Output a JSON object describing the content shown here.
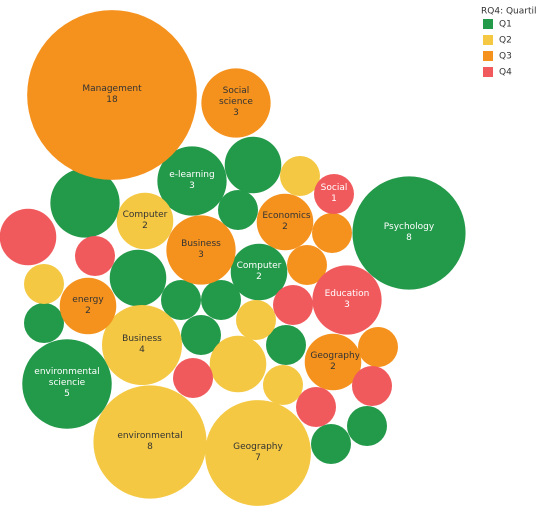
{
  "chart_data": {
    "type": "bubble",
    "legend_title": "RQ4: Quartil",
    "legend_position": "top-right",
    "series": [
      {
        "name": "Q1",
        "color": "#23994a",
        "labels": [
          "e-learning",
          "Computer",
          "Psychology",
          "environmental sciencie",
          null,
          null,
          null,
          null,
          null,
          null,
          null,
          null,
          null,
          null,
          null
        ],
        "values": [
          3,
          2,
          8,
          5,
          3,
          2,
          1,
          2,
          1,
          1,
          1,
          1,
          1,
          1,
          1
        ]
      },
      {
        "name": "Q2",
        "color": "#f4c842",
        "labels": [
          "Computer",
          "Business",
          "environmental",
          "Geography",
          null,
          null,
          null,
          null,
          null
        ],
        "values": [
          2,
          4,
          8,
          7,
          1,
          1,
          1,
          2,
          1
        ]
      },
      {
        "name": "Q3",
        "color": "#f5921e",
        "labels": [
          "Management",
          "Social science",
          "Economics",
          "Business",
          "energy",
          "Geography",
          null,
          null,
          null
        ],
        "values": [
          18,
          3,
          2,
          3,
          2,
          2,
          1,
          1,
          1
        ]
      },
      {
        "name": "Q4",
        "color": "#f15a5d",
        "labels": [
          "Social",
          "Education",
          null,
          null,
          null,
          null,
          null,
          null
        ],
        "values": [
          1,
          3,
          2,
          1,
          1,
          1,
          1,
          1
        ]
      }
    ]
  }
}
